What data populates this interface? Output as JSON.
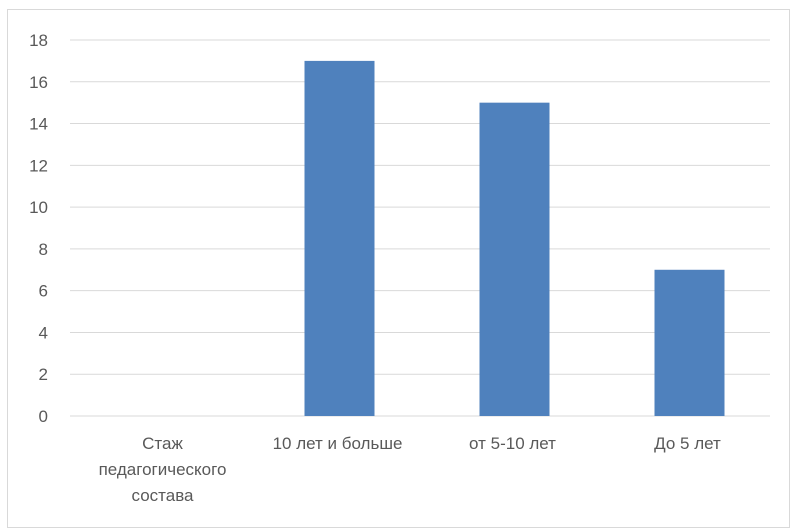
{
  "chart_data": {
    "type": "bar",
    "categories": [
      "Стаж педагогического состава",
      "10 лет и больше",
      "от 5-10 лет",
      "До 5 лет"
    ],
    "category_lines": [
      [
        "Стаж",
        "педагогического",
        "состава"
      ],
      [
        "10 лет и больше"
      ],
      [
        "от 5-10 лет"
      ],
      [
        "До 5 лет"
      ]
    ],
    "values": [
      0,
      17,
      15,
      7
    ],
    "ylim": [
      0,
      18
    ],
    "yticks": [
      "0",
      "2",
      "4",
      "6",
      "8",
      "10",
      "12",
      "14",
      "16",
      "18"
    ],
    "grid": true,
    "colors": {
      "bar": "#4f81bd",
      "grid": "#d9d9d9",
      "text": "#595959",
      "border": "#d9d9d9"
    }
  }
}
